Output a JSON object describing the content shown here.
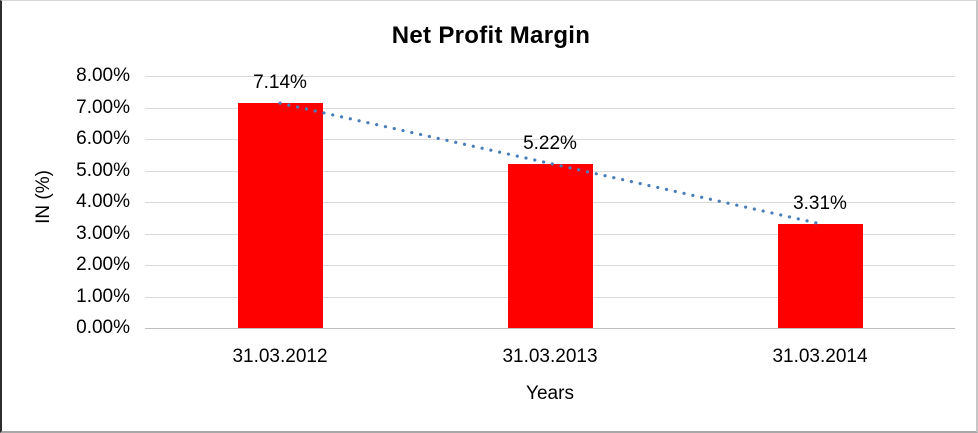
{
  "chart_data": {
    "type": "bar",
    "title": "Net Profit Margin",
    "xlabel": "Years",
    "ylabel": "IN (%)",
    "categories": [
      "31.03.2012",
      "31.03.2013",
      "31.03.2014"
    ],
    "values": [
      7.14,
      5.22,
      3.31
    ],
    "data_labels": [
      "7.14%",
      "5.22%",
      "3.31%"
    ],
    "y_ticks": [
      "8.00%",
      "7.00%",
      "6.00%",
      "5.00%",
      "4.00%",
      "3.00%",
      "2.00%",
      "1.00%",
      "0.00%"
    ],
    "ylim": [
      0,
      8
    ],
    "grid": true,
    "legend": "none",
    "bar_color": "#ff0000",
    "gridline_color": "#d9d9d9",
    "axis_line_color": "#bfbfbf",
    "trendline": {
      "type": "linear",
      "style": "dotted",
      "color": "#4a7ebb",
      "from_value": 7.14,
      "to_value": 3.31
    }
  }
}
